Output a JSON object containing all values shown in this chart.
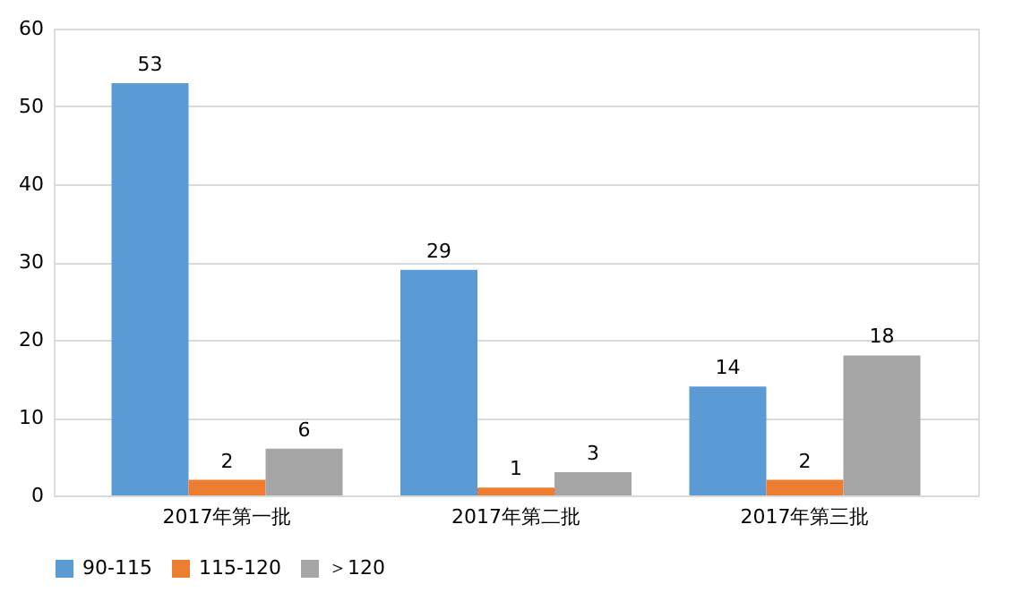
{
  "chart_data": {
    "type": "bar",
    "categories": [
      "2017年第一批",
      "2017年第二批",
      "2017年第三批"
    ],
    "series": [
      {
        "name": "90-115",
        "color": "#5b9bd5",
        "values": [
          53,
          29,
          14
        ]
      },
      {
        "name": "115-120",
        "color": "#ed7d31",
        "values": [
          2,
          1,
          2
        ]
      },
      {
        "name": "＞120",
        "color": "#a5a5a5",
        "values": [
          6,
          3,
          18
        ]
      }
    ],
    "ylim": [
      0,
      60
    ],
    "yticks": [
      0,
      10,
      20,
      30,
      40,
      50,
      60
    ],
    "grid": "y",
    "legend": "bottom",
    "data_labels": true
  }
}
